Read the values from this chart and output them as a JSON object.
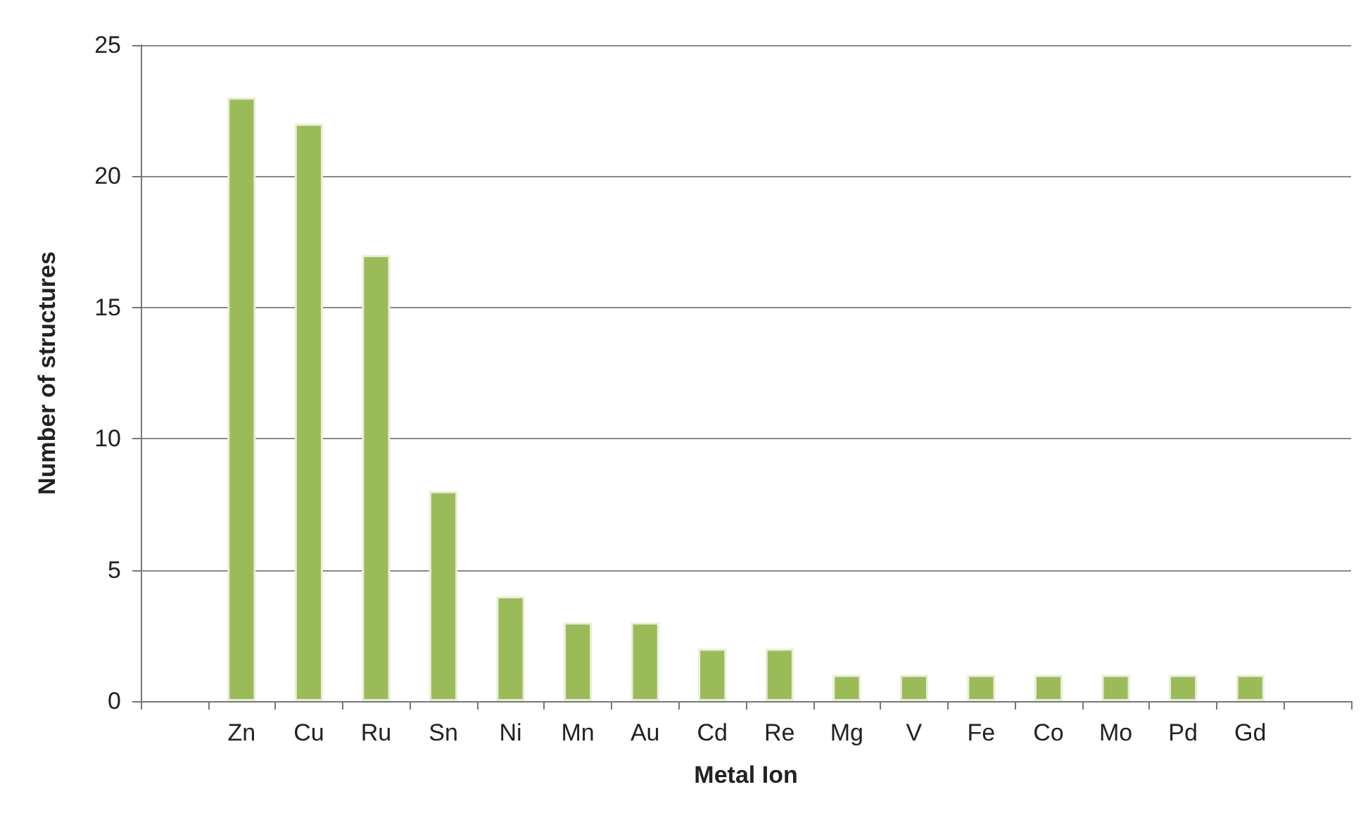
{
  "chart_data": {
    "type": "bar",
    "xlabel": "Metal Ion",
    "ylabel": "Number of structures",
    "categories": [
      null,
      "Zn",
      "Cu",
      "Ru",
      "Sn",
      "Ni",
      "Mn",
      "Au",
      "Cd",
      "Re",
      "Mg",
      "V",
      "Fe",
      "Co",
      "Mo",
      "Pd",
      "Gd",
      null
    ],
    "values": [
      null,
      23,
      22,
      17,
      8,
      4,
      3,
      3,
      2,
      2,
      1,
      1,
      1,
      1,
      1,
      1,
      1,
      null
    ],
    "color": "#9bbb59",
    "ylim": [
      0,
      25
    ],
    "yticks": [
      0,
      5,
      10,
      15,
      20,
      25
    ],
    "grid": "y"
  }
}
